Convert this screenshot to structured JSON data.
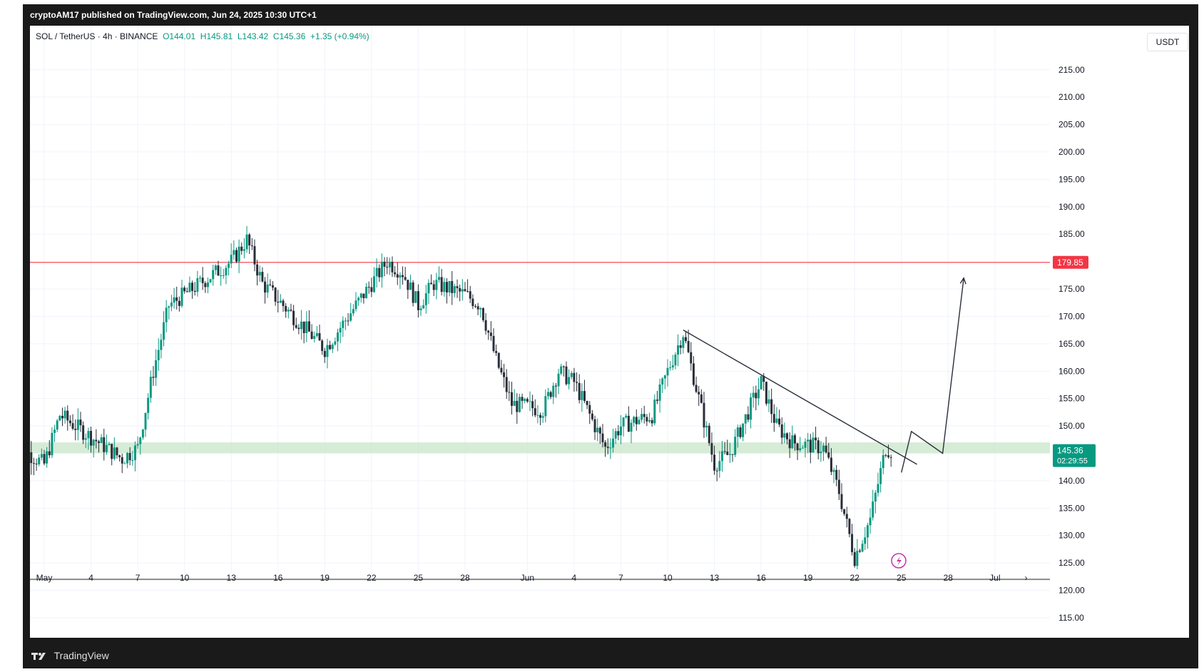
{
  "header": {
    "published": "cryptoAM17 published on TradingView.com, Jun 24, 2025 10:30 UTC+1"
  },
  "legend": {
    "symbol": "SOL / TetherUS · 4h · BINANCE",
    "open": "O144.01",
    "high": "H145.81",
    "low": "L143.42",
    "close": "C145.36",
    "change": "+1.35 (+0.94%)"
  },
  "currency": "USDT",
  "footer": {
    "brand": "TradingView"
  },
  "colors": {
    "up": "#089981",
    "down": "#2a2e39",
    "resistance": "#f23645",
    "support_zone": "#c8e6c9",
    "last_price_bg": "#089981",
    "grid": "#f0f3fa"
  },
  "chart_data": {
    "type": "candlestick",
    "y_tick_labels": [
      "215.00",
      "210.00",
      "205.00",
      "200.00",
      "195.00",
      "190.00",
      "185.00",
      "175.00",
      "170.00",
      "165.00",
      "160.00",
      "155.00",
      "150.00",
      "140.00",
      "135.00",
      "130.00",
      "125.00",
      "120.00",
      "115.00"
    ],
    "x_tick_labels": [
      "May",
      "4",
      "7",
      "10",
      "13",
      "16",
      "19",
      "22",
      "25",
      "28",
      "Jun",
      "4",
      "7",
      "10",
      "13",
      "16",
      "19",
      "22",
      "25",
      "28",
      "Jul"
    ],
    "ylim": [
      112,
      222
    ],
    "resistance_level": {
      "label": "179.85",
      "value": 179.85
    },
    "support_zone": [
      145,
      147
    ],
    "lower_line": 122,
    "last_price": {
      "label": "145.36",
      "countdown": "02:29:55"
    },
    "trendline": {
      "from": [
        "Jun 11",
        167.5
      ],
      "to": [
        "Jun 26",
        143.0
      ]
    },
    "projection": [
      [
        "Jun 25",
        141.5
      ],
      [
        "Jun 25",
        149.0
      ],
      [
        "Jun 26",
        145.0
      ],
      [
        "Jun 29",
        177.0
      ]
    ],
    "price_path_keypoints": [
      [
        "Apr 30",
        147
      ],
      [
        "May 1",
        143
      ],
      [
        "May 2",
        152
      ],
      [
        "May 4",
        148
      ],
      [
        "May 6",
        144
      ],
      [
        "May 7",
        146
      ],
      [
        "May 8",
        160
      ],
      [
        "May 9",
        172
      ],
      [
        "May 11",
        176
      ],
      [
        "May 13",
        180
      ],
      [
        "May 14",
        184
      ],
      [
        "May 15",
        176
      ],
      [
        "May 17",
        170
      ],
      [
        "May 19",
        164
      ],
      [
        "May 21",
        172
      ],
      [
        "May 23",
        180
      ],
      [
        "May 24",
        178
      ],
      [
        "May 25",
        172
      ],
      [
        "May 26",
        176
      ],
      [
        "May 28",
        174
      ],
      [
        "May 29",
        172
      ],
      [
        "May 30",
        162
      ],
      [
        "May 31",
        154
      ],
      [
        "Jun 2",
        153
      ],
      [
        "Jun 3",
        160
      ],
      [
        "Jun 4",
        158
      ],
      [
        "Jun 6",
        146
      ],
      [
        "Jun 7",
        150
      ],
      [
        "Jun 9",
        152
      ],
      [
        "Jun 10",
        160
      ],
      [
        "Jun 11",
        167
      ],
      [
        "Jun 12",
        155
      ],
      [
        "Jun 13",
        143
      ],
      [
        "Jun 14",
        145
      ],
      [
        "Jun 16",
        158
      ],
      [
        "Jun 17",
        150
      ],
      [
        "Jun 18",
        147
      ],
      [
        "Jun 20",
        146
      ],
      [
        "Jun 21",
        138
      ],
      [
        "Jun 22",
        126
      ],
      [
        "Jun 23",
        133
      ],
      [
        "Jun 24",
        146
      ],
      [
        "Jun 24 10:00",
        145.36
      ]
    ]
  }
}
